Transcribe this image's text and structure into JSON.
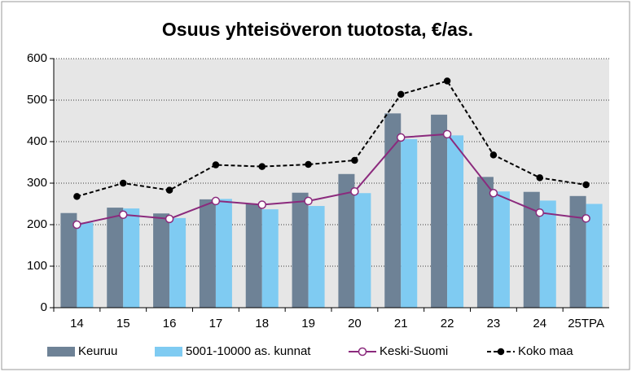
{
  "chart_data": {
    "type": "bar",
    "title": "Osuus yhteisöveron tuotosta, €/as.",
    "categories": [
      "14",
      "15",
      "16",
      "17",
      "18",
      "19",
      "20",
      "21",
      "22",
      "23",
      "24",
      "25TPA"
    ],
    "series": [
      {
        "name": "Keuruu",
        "type": "bar",
        "color": "#6e8296",
        "values": [
          228,
          241,
          227,
          261,
          250,
          277,
          322,
          468,
          465,
          315,
          279,
          269
        ]
      },
      {
        "name": "5001-10000 as. kunnat",
        "type": "bar",
        "color": "#7fcbf2",
        "values": [
          205,
          239,
          216,
          262,
          237,
          245,
          276,
          406,
          415,
          280,
          258,
          250
        ]
      },
      {
        "name": "Keski-Suomi",
        "type": "line",
        "color": "#8b2a7d",
        "values": [
          200,
          224,
          214,
          257,
          248,
          257,
          280,
          410,
          418,
          276,
          229,
          215
        ]
      },
      {
        "name": "Koko maa",
        "type": "line",
        "dashed": true,
        "color": "#000000",
        "values": [
          268,
          300,
          283,
          344,
          340,
          345,
          355,
          514,
          546,
          368,
          313,
          296
        ]
      }
    ],
    "ylim": [
      0,
      600
    ],
    "yticks": [
      0,
      100,
      200,
      300,
      400,
      500,
      600
    ],
    "grid": true,
    "legend": "bottom"
  }
}
